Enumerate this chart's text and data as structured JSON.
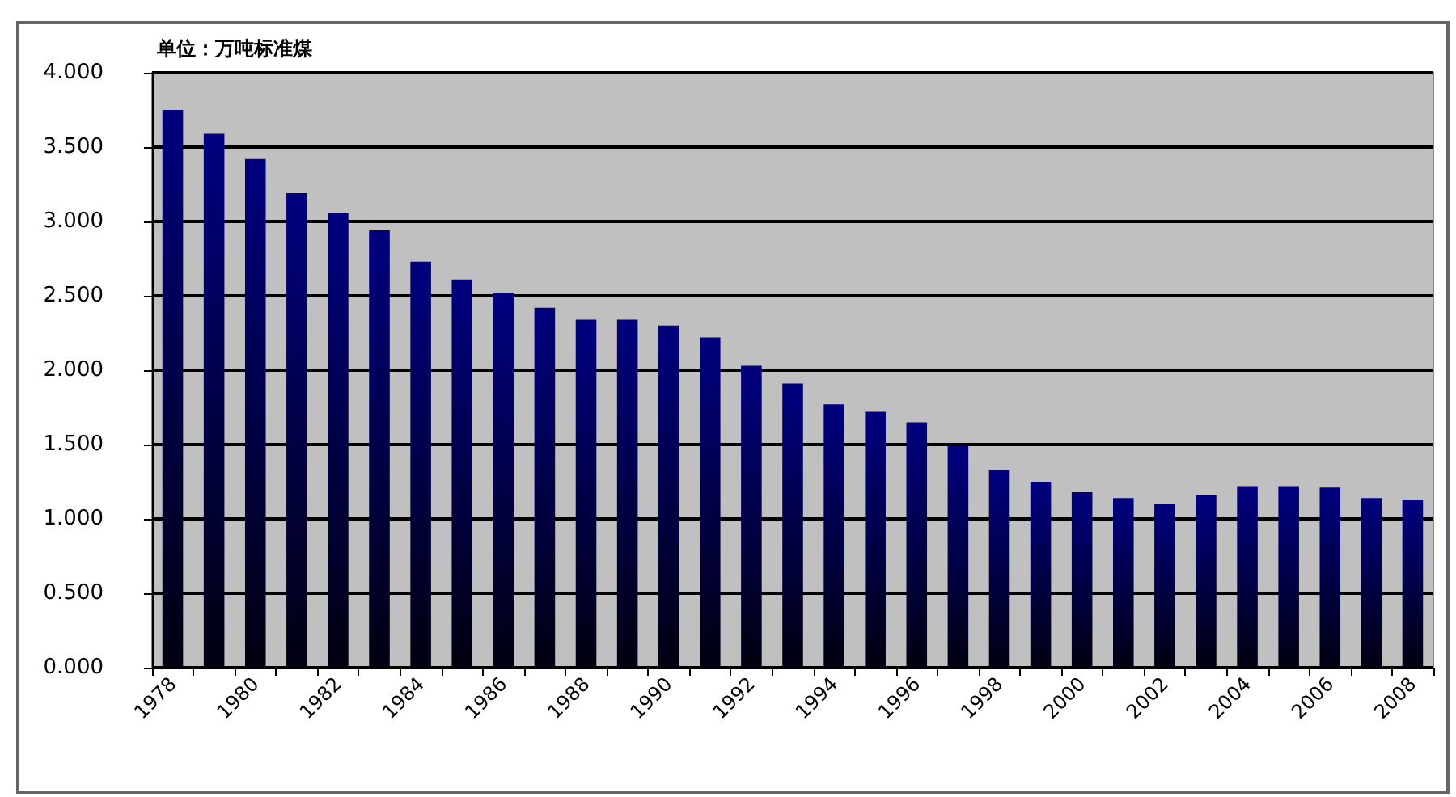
{
  "chart_data": {
    "type": "bar",
    "title": "单位：万吨标准煤",
    "categories": [
      "1978",
      null,
      "1980",
      null,
      "1982",
      null,
      "1984",
      null,
      "1986",
      null,
      "1988",
      null,
      "1990",
      null,
      "1992",
      null,
      "1994",
      null,
      "1996",
      null,
      "1998",
      null,
      "2000",
      null,
      "2002",
      null,
      "2004",
      null,
      "2006",
      null,
      "2008"
    ],
    "values": [
      3.75,
      3.59,
      3.42,
      3.19,
      3.06,
      2.94,
      2.73,
      2.61,
      2.52,
      2.42,
      2.34,
      2.34,
      2.3,
      2.22,
      2.03,
      1.91,
      1.77,
      1.72,
      1.65,
      1.49,
      1.33,
      1.25,
      1.18,
      1.14,
      1.1,
      1.16,
      1.22,
      1.22,
      1.21,
      1.14,
      1.13
    ],
    "color": "#000080",
    "ylim": [
      0,
      4
    ],
    "yticks": [
      {
        "value": 0,
        "label": "0.000"
      },
      {
        "value": 0.5,
        "label": "0.500"
      },
      {
        "value": 1,
        "label": "1.000"
      },
      {
        "value": 1.5,
        "label": "1.500"
      },
      {
        "value": 2,
        "label": "2.000"
      },
      {
        "value": 2.5,
        "label": "2.500"
      },
      {
        "value": 3,
        "label": "3.000"
      },
      {
        "value": 3.5,
        "label": "3.500"
      },
      {
        "value": 4,
        "label": "4.000"
      }
    ],
    "grid": "y"
  }
}
